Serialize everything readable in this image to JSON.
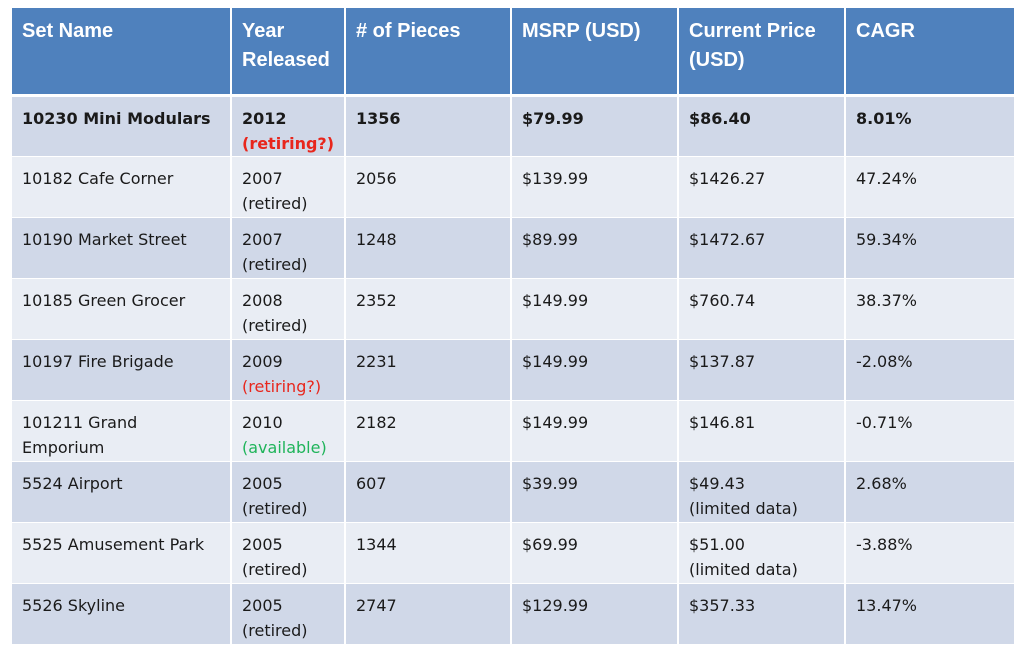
{
  "headers": [
    "Set Name",
    "Year Released",
    "# of Pieces",
    "MSRP (USD)",
    "Current Price (USD)",
    "CAGR"
  ],
  "colors": {
    "header_bg": "#4f81bd",
    "row_odd": "#d0d8e8",
    "row_even": "#e9edf4",
    "status_red": "#e8261c",
    "status_green": "#1fb45a"
  },
  "rows": [
    {
      "name": "10230 Mini Modulars",
      "year": "2012",
      "status": "(retiring?)",
      "pieces": "1356",
      "msrp": "$79.99",
      "price": "$86.40",
      "price_note": "",
      "cagr": "8.01%"
    },
    {
      "name": "10182 Cafe Corner",
      "year": "2007",
      "status": "(retired)",
      "pieces": "2056",
      "msrp": "$139.99",
      "price": "$1426.27",
      "price_note": "",
      "cagr": "47.24%"
    },
    {
      "name": "10190 Market Street",
      "year": "2007",
      "status": "(retired)",
      "pieces": "1248",
      "msrp": "$89.99",
      "price": "$1472.67",
      "price_note": "",
      "cagr": "59.34%"
    },
    {
      "name": "10185 Green Grocer",
      "year": "2008",
      "status": "(retired)",
      "pieces": "2352",
      "msrp": "$149.99",
      "price": "$760.74",
      "price_note": "",
      "cagr": "38.37%"
    },
    {
      "name": "10197 Fire Brigade",
      "year": "2009",
      "status": "(retiring?)",
      "pieces": "2231",
      "msrp": "$149.99",
      "price": "$137.87",
      "price_note": "",
      "cagr": "-2.08%"
    },
    {
      "name": "101211 Grand Emporium",
      "year": "2010",
      "status": "(available)",
      "pieces": "2182",
      "msrp": "$149.99",
      "price": "$146.81",
      "price_note": "",
      "cagr": "-0.71%"
    },
    {
      "name": "5524 Airport",
      "year": "2005",
      "status": "(retired)",
      "pieces": "607",
      "msrp": "$39.99",
      "price": "$49.43",
      "price_note": "(limited data)",
      "cagr": "2.68%"
    },
    {
      "name": "5525 Amusement Park",
      "year": "2005",
      "status": "(retired)",
      "pieces": "1344",
      "msrp": "$69.99",
      "price": "$51.00",
      "price_note": "(limited data)",
      "cagr": "-3.88%"
    },
    {
      "name": "5526 Skyline",
      "year": "2005",
      "status": "(retired)",
      "pieces": "2747",
      "msrp": "$129.99",
      "price": "$357.33",
      "price_note": "",
      "cagr": "13.47%"
    }
  ]
}
